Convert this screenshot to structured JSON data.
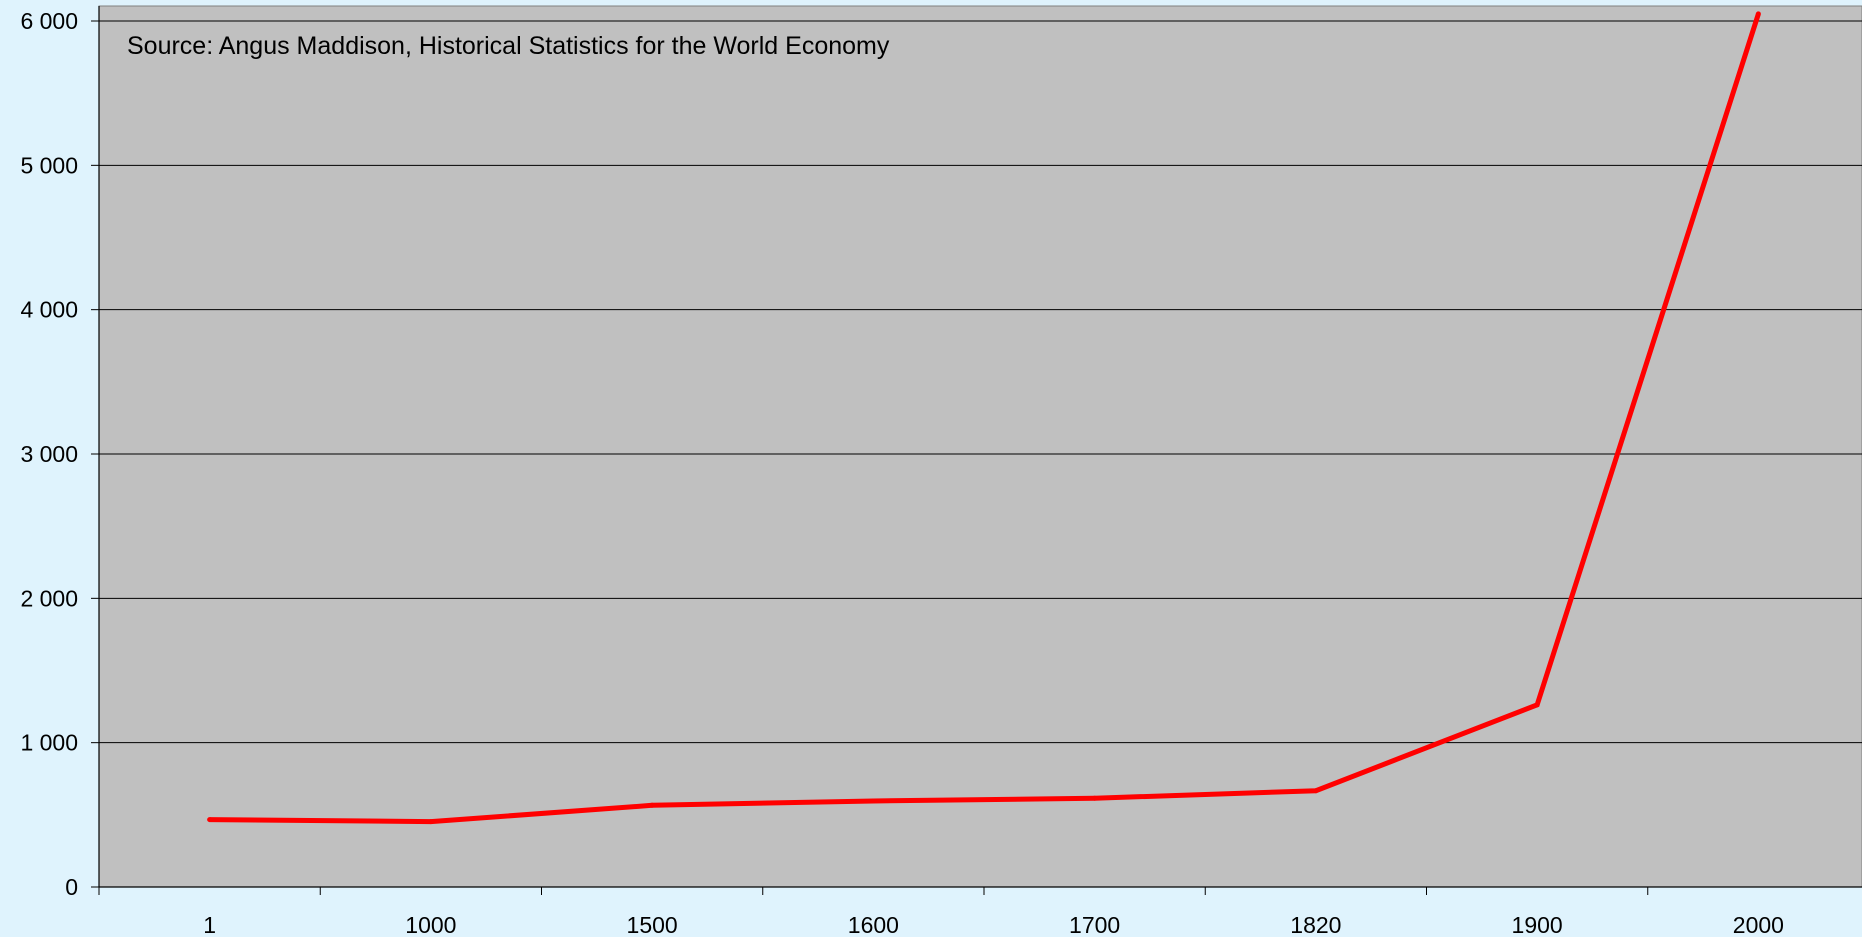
{
  "chart_data": {
    "type": "line",
    "title": "",
    "xlabel": "",
    "ylabel": "",
    "annotation": "Source: Angus Maddison, Historical Statistics for the World Economy",
    "categories": [
      "1",
      "1000",
      "1500",
      "1600",
      "1700",
      "1820",
      "1900",
      "2000"
    ],
    "series": [
      {
        "values": [
          467,
          453,
          566,
          596,
          615,
          667,
          1262,
          6049
        ],
        "color": "#ff0000"
      }
    ],
    "ylim": [
      0,
      6000
    ],
    "yticks": [
      0,
      1000,
      2000,
      3000,
      4000,
      5000,
      6000
    ],
    "ytick_labels": [
      "0",
      "1 000",
      "2 000",
      "3 000",
      "4 000",
      "5 000",
      "6 000"
    ],
    "grid": true,
    "legend": "none",
    "colors": {
      "page_background": "#dff3fd",
      "plot_background": "#c0c0c0",
      "gridline": "#000000",
      "line": "#ff0000"
    }
  }
}
